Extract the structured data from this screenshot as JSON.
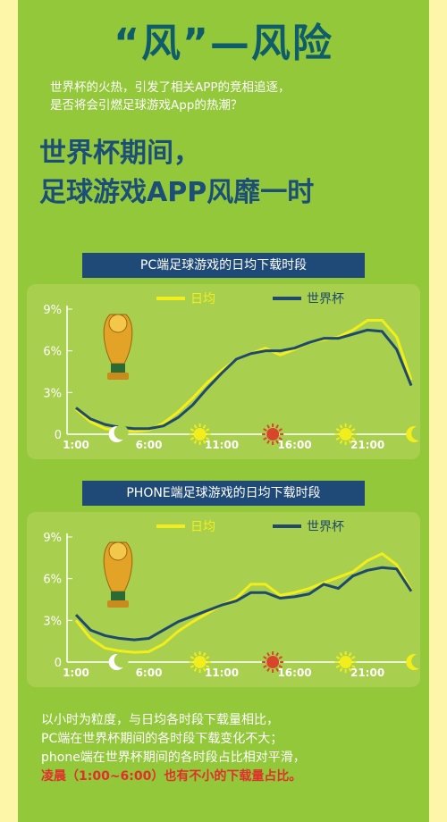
{
  "header": {
    "title": "“风”—风险",
    "intro_lines": [
      "世界杯的火热，引发了相关APP的竞相追逐，",
      "是否将会引燃足球游戏App的热潮？"
    ]
  },
  "headline": {
    "line1": "世界杯期间，",
    "line2": "足球游戏APP风靡一时"
  },
  "colors": {
    "panel_green": "#92c83a",
    "card_green": "#a8cf4e",
    "daily_avg_yellow": "#f2ee1b",
    "worldcup_navy": "#1f4a6e",
    "title_bar_navy": "#1f4a78"
  },
  "icons": [
    "trophy-icon",
    "moon-icon",
    "sun-icon",
    "red-sun-icon",
    "sun-icon",
    "crescent-moon-icon"
  ],
  "chart_data": [
    {
      "type": "line",
      "title": "PC端足球游戏的日均下载时段",
      "x": [
        1,
        2,
        3,
        4,
        5,
        6,
        7,
        8,
        9,
        10,
        11,
        12,
        13,
        14,
        15,
        16,
        17,
        18,
        19,
        20,
        21,
        22,
        23,
        24
      ],
      "xtick_labels": [
        "1:00",
        "6:00",
        "11:00",
        "16:00",
        "21:00"
      ],
      "xtick_positions": [
        1,
        6,
        11,
        16,
        21
      ],
      "ytick_labels": [
        "0",
        "3%",
        "6%",
        "9%"
      ],
      "ylim": [
        0,
        9
      ],
      "legend_position": "top",
      "series": [
        {
          "name": "日均",
          "color": "#f2ee1b",
          "values": [
            1.8,
            0.9,
            0.4,
            0.25,
            0.2,
            0.3,
            0.8,
            1.6,
            2.6,
            3.7,
            4.6,
            5.4,
            5.8,
            6.2,
            5.7,
            6.1,
            6.6,
            6.8,
            7.0,
            7.5,
            8.2,
            8.2,
            7.0,
            3.9
          ]
        },
        {
          "name": "世界杯",
          "color": "#1f4a6e",
          "values": [
            1.9,
            1.1,
            0.7,
            0.5,
            0.4,
            0.4,
            0.6,
            1.2,
            2.1,
            3.3,
            4.4,
            5.4,
            5.8,
            6.0,
            6.0,
            6.2,
            6.6,
            6.9,
            6.9,
            7.2,
            7.5,
            7.4,
            6.1,
            3.5
          ]
        }
      ]
    },
    {
      "type": "line",
      "title": "PHONE端足球游戏的日均下载时段",
      "x": [
        1,
        2,
        3,
        4,
        5,
        6,
        7,
        8,
        9,
        10,
        11,
        12,
        13,
        14,
        15,
        16,
        17,
        18,
        19,
        20,
        21,
        22,
        23,
        24
      ],
      "xtick_labels": [
        "1:00",
        "6:00",
        "11:00",
        "16:00",
        "21:00"
      ],
      "xtick_positions": [
        1,
        6,
        11,
        16,
        21
      ],
      "ytick_labels": [
        "0",
        "3%",
        "6%",
        "9%"
      ],
      "ylim": [
        0,
        9
      ],
      "legend_position": "top",
      "series": [
        {
          "name": "日均",
          "color": "#f2ee1b",
          "values": [
            3.0,
            1.7,
            1.0,
            0.8,
            0.7,
            0.75,
            1.3,
            2.2,
            2.9,
            3.5,
            4.1,
            4.6,
            5.6,
            5.6,
            4.8,
            5.0,
            5.3,
            5.7,
            6.1,
            6.5,
            7.3,
            7.8,
            7.0,
            5.2
          ]
        },
        {
          "name": "世界杯",
          "color": "#1f4a6e",
          "values": [
            3.4,
            2.3,
            1.9,
            1.7,
            1.6,
            1.7,
            2.3,
            2.9,
            3.3,
            3.7,
            4.1,
            4.4,
            5.0,
            5.0,
            4.6,
            4.7,
            4.9,
            5.6,
            5.3,
            6.2,
            6.6,
            6.8,
            6.7,
            5.1
          ]
        }
      ]
    }
  ],
  "outro": {
    "line1": "以小时为粒度，与日均各时段下载量相比，",
    "line2": "PC端在世界杯期间的各时段下载变化不大；",
    "line3": "phone端在世界杯期间的各时段占比相对平滑，",
    "line4_red": "凌晨（1:00~6:00）也有不小的下载量占比。"
  }
}
